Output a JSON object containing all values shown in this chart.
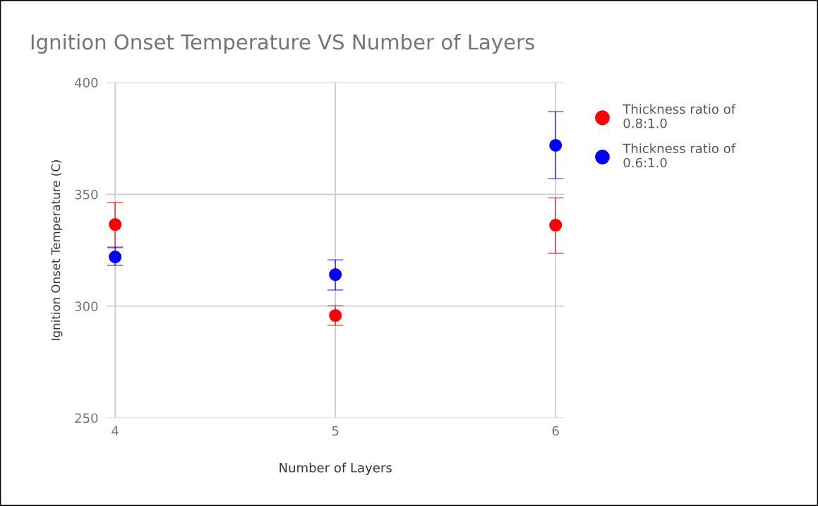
{
  "chart_data": {
    "type": "scatter",
    "title": "Ignition Onset Temperature VS Number of Layers",
    "xlabel": "Number of Layers",
    "ylabel": "Ignition Onset Temperature (C)",
    "x": [
      4,
      5,
      6
    ],
    "series": [
      {
        "name": "Thickness ratio of\n0.8:1.0",
        "color": "#ff0000",
        "values": [
          336.5,
          295.8,
          336.2
        ],
        "errors": [
          [
            326.1,
            346.3
          ],
          [
            291.4,
            300.2
          ],
          [
            323.6,
            348.5
          ]
        ]
      },
      {
        "name": "Thickness ratio of\n0.6:1.0",
        "color": "#0000ff",
        "values": [
          322,
          314.1,
          371.9
        ],
        "errors": [
          [
            318.2,
            326.4
          ],
          [
            307.2,
            320.7
          ],
          [
            357,
            387
          ]
        ]
      }
    ],
    "xlim": [
      3.96,
      6.04
    ],
    "xticks": [
      4,
      5,
      6
    ],
    "ylim": [
      250,
      400
    ],
    "yticks": [
      250,
      300,
      350,
      400
    ],
    "grid": true,
    "legend": "top right",
    "marker": "circle"
  }
}
